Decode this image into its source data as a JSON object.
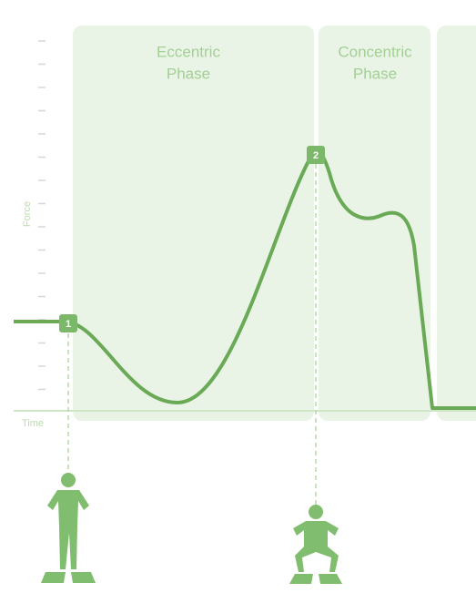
{
  "phases": [
    {
      "lines": [
        "Eccentric",
        "Phase"
      ]
    },
    {
      "lines": [
        "Concentric",
        "Phase"
      ]
    }
  ],
  "y_label": "Force",
  "x_label": "Time",
  "markers": [
    "1",
    "2"
  ]
}
